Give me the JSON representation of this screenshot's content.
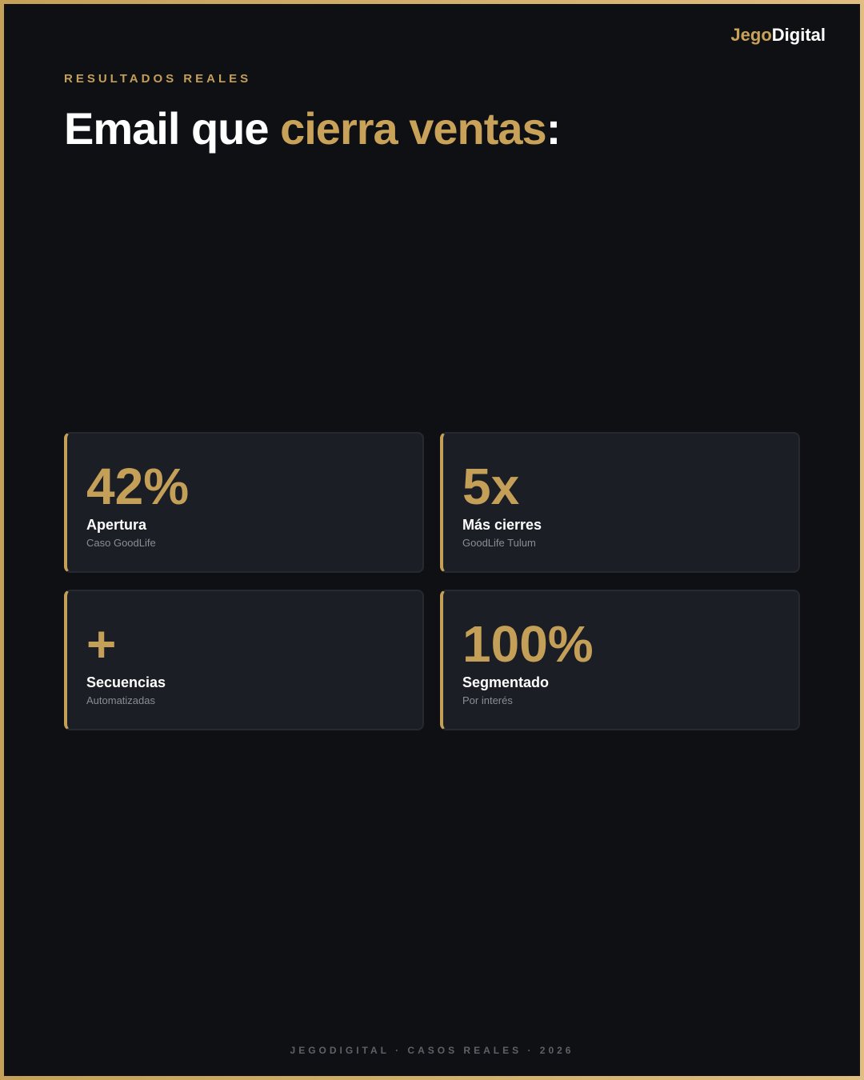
{
  "brand": {
    "part1": "Jego",
    "part2": "Digital"
  },
  "eyebrow": "RESULTADOS REALES",
  "title": {
    "white": "Email que ",
    "gold": "cierra ventas",
    "tail": ":"
  },
  "cards": [
    {
      "value": "42%",
      "label": "Apertura",
      "sub": "Caso GoodLife"
    },
    {
      "value": "5x",
      "label": "Más cierres",
      "sub": "GoodLife Tulum"
    },
    {
      "value": "+",
      "label": "Secuencias",
      "sub": "Automatizadas"
    },
    {
      "value": "100%",
      "label": "Segmentado",
      "sub": "Por interés"
    }
  ],
  "footer": "JEGODIGITAL · CASOS REALES · 2026",
  "colors": {
    "accent": "#c49f58",
    "background": "#0f1014",
    "card": "#1b1e25"
  }
}
